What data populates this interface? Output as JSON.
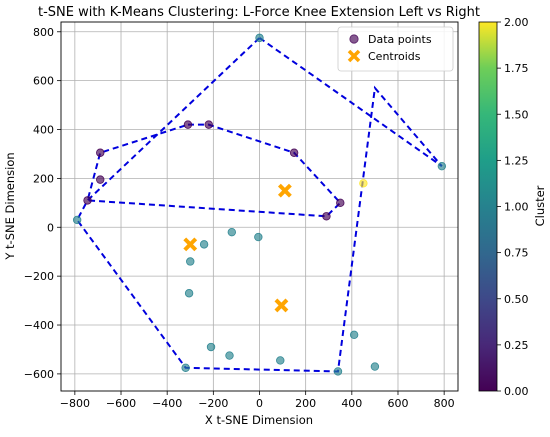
{
  "chart_data": {
    "type": "scatter",
    "title": "t-SNE with K-Means Clustering: L-Force Knee Extension Left vs Right",
    "xlabel": "X t-SNE Dimension",
    "ylabel": "Y t-SNE Dimension",
    "xlim": [
      -860,
      860
    ],
    "ylim": [
      -670,
      840
    ],
    "xticks": [
      -800,
      -600,
      -400,
      -200,
      0,
      200,
      400,
      600,
      800
    ],
    "yticks": [
      -600,
      -400,
      -200,
      0,
      200,
      400,
      600,
      800
    ],
    "xtick_labels": [
      "−800",
      "−600",
      "−400",
      "−200",
      "0",
      "200",
      "400",
      "600",
      "800"
    ],
    "ytick_labels": [
      "−600",
      "−400",
      "−200",
      "0",
      "200",
      "400",
      "600",
      "800"
    ],
    "grid": true,
    "legend": {
      "position": "upper-right",
      "entries": [
        {
          "label": "Data points",
          "marker": "circle"
        },
        {
          "label": "Centroids",
          "marker": "x"
        }
      ]
    },
    "colorbar": {
      "label": "Cluster",
      "range": [
        0,
        2
      ],
      "ticks": [
        0.0,
        0.25,
        0.5,
        0.75,
        1.0,
        1.25,
        1.5,
        1.75,
        2.0
      ],
      "tick_labels": [
        "0.00",
        "0.25",
        "0.50",
        "0.75",
        "1.00",
        "1.25",
        "1.50",
        "1.75",
        "2.00"
      ],
      "colormap": "viridis"
    },
    "points": [
      {
        "x": 0,
        "y": 775,
        "cluster": 1
      },
      {
        "x": -310,
        "y": 420,
        "cluster": 0
      },
      {
        "x": -220,
        "y": 420,
        "cluster": 0
      },
      {
        "x": -690,
        "y": 305,
        "cluster": 0
      },
      {
        "x": 150,
        "y": 305,
        "cluster": 0
      },
      {
        "x": -690,
        "y": 195,
        "cluster": 0
      },
      {
        "x": 450,
        "y": 180,
        "cluster": 2
      },
      {
        "x": -745,
        "y": 110,
        "cluster": 0
      },
      {
        "x": 350,
        "y": 100,
        "cluster": 0
      },
      {
        "x": 290,
        "y": 45,
        "cluster": 0
      },
      {
        "x": 790,
        "y": 250,
        "cluster": 1
      },
      {
        "x": -790,
        "y": 30,
        "cluster": 1
      },
      {
        "x": -120,
        "y": -20,
        "cluster": 1
      },
      {
        "x": -5,
        "y": -40,
        "cluster": 1
      },
      {
        "x": -240,
        "y": -70,
        "cluster": 1
      },
      {
        "x": -300,
        "y": -140,
        "cluster": 1
      },
      {
        "x": -305,
        "y": -270,
        "cluster": 1
      },
      {
        "x": 410,
        "y": -440,
        "cluster": 1
      },
      {
        "x": -210,
        "y": -490,
        "cluster": 1
      },
      {
        "x": -130,
        "y": -525,
        "cluster": 1
      },
      {
        "x": 90,
        "y": -545,
        "cluster": 1
      },
      {
        "x": -320,
        "y": -575,
        "cluster": 1
      },
      {
        "x": 500,
        "y": -570,
        "cluster": 1
      },
      {
        "x": 340,
        "y": -590,
        "cluster": 1
      }
    ],
    "centroids": [
      {
        "x": 110,
        "y": 150
      },
      {
        "x": -300,
        "y": -70
      },
      {
        "x": 95,
        "y": -320
      }
    ],
    "hulls": [
      [
        [
          -310,
          420
        ],
        [
          -220,
          420
        ],
        [
          150,
          305
        ],
        [
          350,
          100
        ],
        [
          290,
          45
        ],
        [
          -745,
          110
        ],
        [
          -690,
          305
        ]
      ],
      [
        [
          0,
          775
        ],
        [
          790,
          250
        ],
        [
          500,
          570
        ],
        [
          340,
          -590
        ],
        [
          -320,
          -575
        ],
        [
          -790,
          30
        ],
        [
          -745,
          110
        ]
      ]
    ]
  }
}
